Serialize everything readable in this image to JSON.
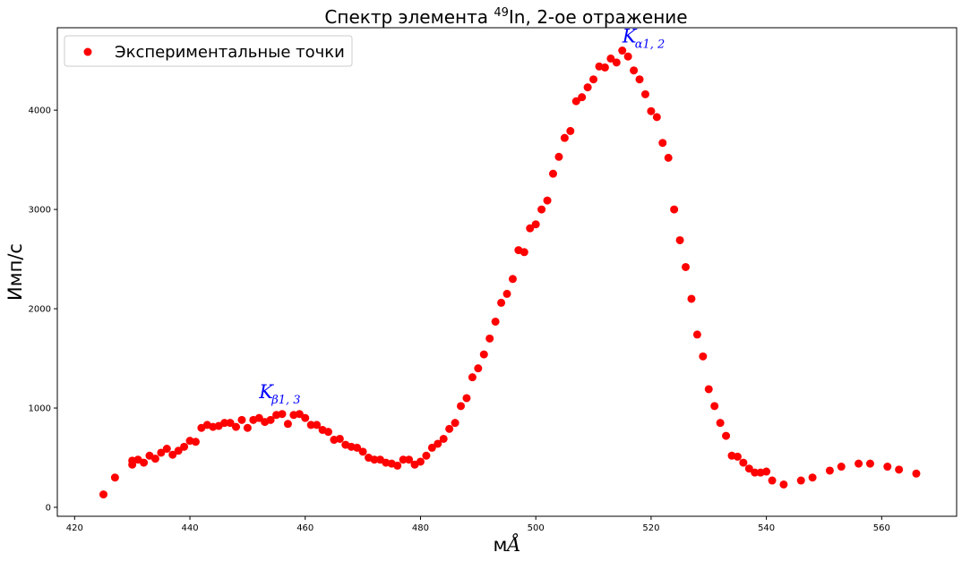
{
  "chart_data": {
    "type": "scatter",
    "title_prefix": "Спектр элемента ",
    "title_sup": "49",
    "title_suffix": "In, 2-ое отражение",
    "xlabel_main": "м",
    "xlabel_unit": "Å",
    "ylabel": "Имп/с",
    "xlim": [
      417,
      573
    ],
    "ylim": [
      -90,
      4830
    ],
    "xticks": [
      420,
      440,
      460,
      480,
      500,
      520,
      540,
      560
    ],
    "yticks": [
      0,
      1000,
      2000,
      3000,
      4000
    ],
    "grid": false,
    "legend": {
      "position": "top-left",
      "label": "Экспериментальные точки"
    },
    "marker_color": "#ff0000",
    "annotations": [
      {
        "main": "K",
        "sub": "β1, 3",
        "sub_greek": "β",
        "sub_rest": "1, 3",
        "x": 452,
        "y": 1100
      },
      {
        "main": "K",
        "sub": "α1, 2",
        "sub_greek": "α",
        "sub_rest": "1, 2",
        "x": 515,
        "y": 4680
      }
    ],
    "series": [
      {
        "points": [
          [
            425,
            130
          ],
          [
            427,
            300
          ],
          [
            430,
            430
          ],
          [
            430,
            470
          ],
          [
            431,
            480
          ],
          [
            432,
            450
          ],
          [
            433,
            520
          ],
          [
            434,
            490
          ],
          [
            435,
            550
          ],
          [
            436,
            590
          ],
          [
            437,
            530
          ],
          [
            438,
            570
          ],
          [
            439,
            610
          ],
          [
            440,
            670
          ],
          [
            441,
            660
          ],
          [
            442,
            800
          ],
          [
            443,
            830
          ],
          [
            444,
            810
          ],
          [
            445,
            820
          ],
          [
            446,
            850
          ],
          [
            447,
            850
          ],
          [
            448,
            810
          ],
          [
            449,
            880
          ],
          [
            450,
            800
          ],
          [
            451,
            880
          ],
          [
            452,
            900
          ],
          [
            453,
            860
          ],
          [
            454,
            880
          ],
          [
            455,
            930
          ],
          [
            456,
            940
          ],
          [
            457,
            840
          ],
          [
            458,
            930
          ],
          [
            459,
            940
          ],
          [
            460,
            900
          ],
          [
            461,
            830
          ],
          [
            462,
            830
          ],
          [
            463,
            780
          ],
          [
            464,
            760
          ],
          [
            465,
            680
          ],
          [
            466,
            690
          ],
          [
            467,
            630
          ],
          [
            468,
            610
          ],
          [
            469,
            600
          ],
          [
            470,
            560
          ],
          [
            471,
            500
          ],
          [
            472,
            480
          ],
          [
            473,
            480
          ],
          [
            474,
            450
          ],
          [
            475,
            440
          ],
          [
            476,
            420
          ],
          [
            477,
            480
          ],
          [
            478,
            480
          ],
          [
            479,
            430
          ],
          [
            480,
            460
          ],
          [
            481,
            520
          ],
          [
            482,
            600
          ],
          [
            483,
            640
          ],
          [
            484,
            690
          ],
          [
            485,
            790
          ],
          [
            486,
            850
          ],
          [
            487,
            1020
          ],
          [
            488,
            1100
          ],
          [
            489,
            1310
          ],
          [
            490,
            1400
          ],
          [
            491,
            1540
          ],
          [
            492,
            1700
          ],
          [
            493,
            1870
          ],
          [
            494,
            2060
          ],
          [
            495,
            2150
          ],
          [
            496,
            2300
          ],
          [
            497,
            2590
          ],
          [
            498,
            2570
          ],
          [
            499,
            2810
          ],
          [
            500,
            2850
          ],
          [
            501,
            3000
          ],
          [
            502,
            3090
          ],
          [
            503,
            3360
          ],
          [
            504,
            3530
          ],
          [
            505,
            3720
          ],
          [
            506,
            3790
          ],
          [
            507,
            4090
          ],
          [
            508,
            4130
          ],
          [
            509,
            4230
          ],
          [
            510,
            4310
          ],
          [
            511,
            4440
          ],
          [
            512,
            4430
          ],
          [
            513,
            4520
          ],
          [
            514,
            4480
          ],
          [
            515,
            4600
          ],
          [
            516,
            4540
          ],
          [
            517,
            4400
          ],
          [
            518,
            4310
          ],
          [
            519,
            4160
          ],
          [
            520,
            3990
          ],
          [
            521,
            3930
          ],
          [
            522,
            3670
          ],
          [
            523,
            3520
          ],
          [
            524,
            3000
          ],
          [
            525,
            2690
          ],
          [
            526,
            2420
          ],
          [
            527,
            2100
          ],
          [
            528,
            1740
          ],
          [
            529,
            1520
          ],
          [
            530,
            1190
          ],
          [
            531,
            1020
          ],
          [
            532,
            850
          ],
          [
            533,
            720
          ],
          [
            534,
            520
          ],
          [
            535,
            510
          ],
          [
            536,
            450
          ],
          [
            537,
            390
          ],
          [
            538,
            350
          ],
          [
            539,
            350
          ],
          [
            540,
            360
          ],
          [
            541,
            270
          ],
          [
            543,
            230
          ],
          [
            546,
            270
          ],
          [
            548,
            300
          ],
          [
            551,
            370
          ],
          [
            553,
            410
          ],
          [
            556,
            440
          ],
          [
            558,
            440
          ],
          [
            561,
            410
          ],
          [
            563,
            380
          ],
          [
            566,
            340
          ]
        ]
      }
    ]
  }
}
